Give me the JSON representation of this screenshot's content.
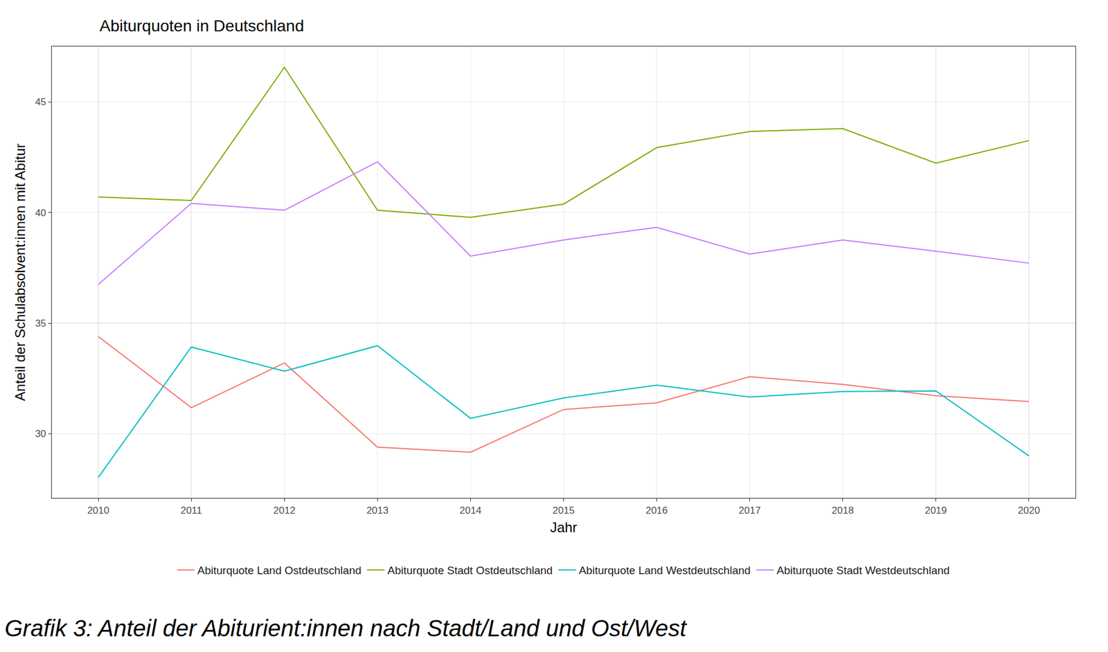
{
  "chart_data": {
    "type": "line",
    "title": "Abiturquoten in Deutschland",
    "x_label": "Jahr",
    "y_label": "Anteil der Schulabsolvent:innen mit Abitur",
    "caption": "Grafik 3: Anteil der Abiturient:innen nach Stadt/Land und Ost/West",
    "x": [
      2010,
      2011,
      2012,
      2013,
      2014,
      2015,
      2016,
      2017,
      2018,
      2019,
      2020
    ],
    "series": [
      {
        "name": "Abiturquote Land Ostdeutschland",
        "color": "#F8766D",
        "values": [
          34.4,
          31.18,
          33.2,
          29.4,
          29.17,
          31.1,
          31.4,
          32.58,
          32.23,
          31.72,
          31.46
        ]
      },
      {
        "name": "Abiturquote Stadt Ostdeutschland",
        "color": "#7CAE00",
        "values": [
          40.7,
          40.54,
          46.56,
          40.1,
          39.78,
          40.38,
          42.93,
          43.66,
          43.79,
          42.23,
          43.25
        ]
      },
      {
        "name": "Abiturquote Land Westdeutschland",
        "color": "#00BFC4",
        "values": [
          28.03,
          33.92,
          32.83,
          33.98,
          30.7,
          31.62,
          32.2,
          31.66,
          31.91,
          31.94,
          29.0
        ]
      },
      {
        "name": "Abiturquote Stadt Westdeutschland",
        "color": "#C77CFF",
        "values": [
          36.75,
          40.41,
          40.1,
          42.29,
          38.03,
          38.76,
          39.33,
          38.12,
          38.76,
          38.25,
          37.71
        ]
      }
    ],
    "xlim": [
      2009.5,
      2020.5
    ],
    "xticks": [
      2010,
      2011,
      2012,
      2013,
      2014,
      2015,
      2016,
      2017,
      2018,
      2019,
      2020
    ],
    "ylim": [
      27.1,
      47.5
    ],
    "yticks": [
      30,
      35,
      40,
      45
    ],
    "grid": true,
    "legend": "bottom"
  }
}
